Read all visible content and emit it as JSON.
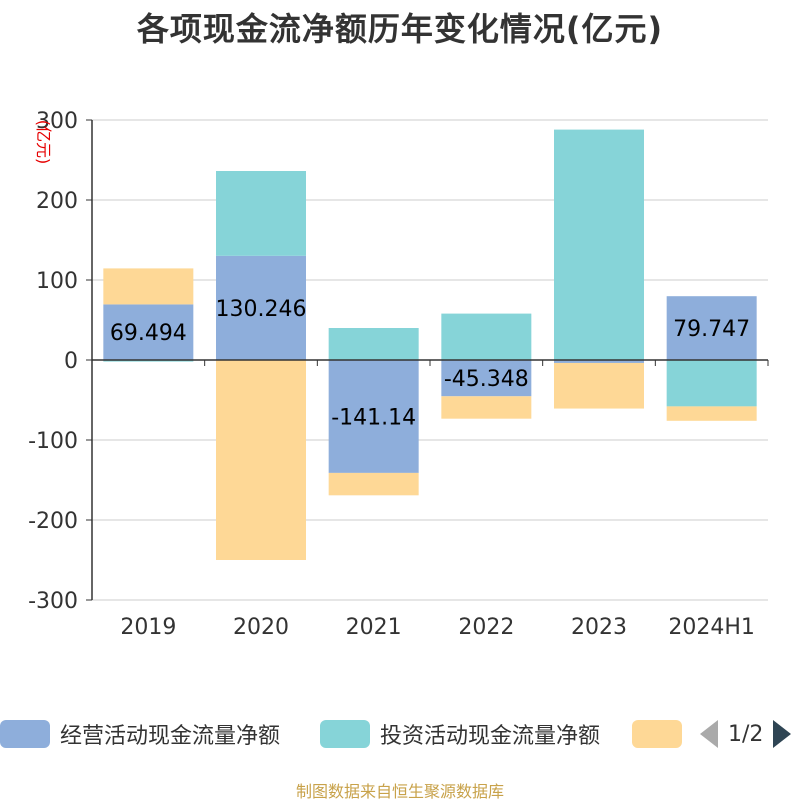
{
  "chart_data": {
    "type": "bar",
    "stacked": true,
    "title": "各项现金流净额历年变化情况(亿元)",
    "unit_label": "(亿元)",
    "categories": [
      "2019",
      "2020",
      "2021",
      "2022",
      "2023",
      "2024H1"
    ],
    "ylim": [
      -300,
      300
    ],
    "yticks": [
      300,
      200,
      100,
      0,
      -100,
      -200,
      -300
    ],
    "grid": true,
    "series": [
      {
        "name": "经营活动现金流量净额",
        "color": "#8eaedb",
        "values": [
          69.494,
          130.246,
          -141.14,
          -45.348,
          -3.7,
          79.747
        ],
        "labels": [
          "69.494",
          "130.246",
          "-141.14",
          "-45.348",
          "",
          "79.747"
        ]
      },
      {
        "name": "投资活动现金流量净额",
        "color": "#86d4d8",
        "values": [
          -2,
          106,
          40,
          58,
          288,
          -58
        ]
      },
      {
        "name": "",
        "color": "#fed896",
        "values": [
          45,
          -250,
          -28,
          -28,
          -57,
          -18
        ]
      }
    ],
    "legend": {
      "position": "bottom",
      "page": "1/2"
    }
  },
  "footer": {
    "source": "制图数据来自恒生聚源数据库"
  }
}
